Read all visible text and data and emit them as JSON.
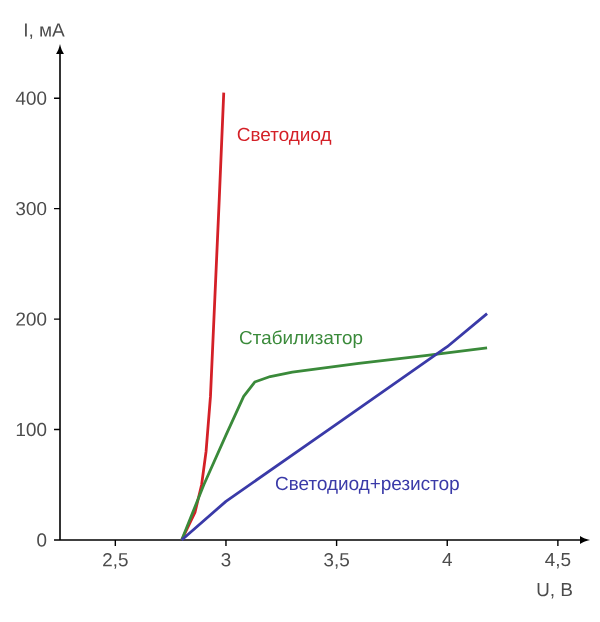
{
  "chart_data": {
    "type": "line",
    "xlabel": "U, В",
    "ylabel": "I, мА",
    "xlim": [
      2.25,
      4.6
    ],
    "ylim": [
      0,
      440
    ],
    "xticks": [
      {
        "value": 2.5,
        "label": "2,5"
      },
      3,
      {
        "value": 3.5,
        "label": "3,5"
      },
      4,
      {
        "value": 4.5,
        "label": "4,5"
      }
    ],
    "yticks": [
      0,
      100,
      200,
      300,
      400
    ],
    "grid": false,
    "legend": false,
    "marker": "none",
    "line_style": "solid",
    "series": [
      {
        "name": "Светодиод",
        "color": "#d42027",
        "x": [
          2.8,
          2.86,
          2.89,
          2.91,
          2.93,
          2.95,
          2.97,
          2.99
        ],
        "values": [
          0,
          25,
          50,
          80,
          130,
          220,
          310,
          405
        ]
      },
      {
        "name": "Стабилизатор",
        "color": "#3a8a3a",
        "x": [
          2.8,
          2.9,
          3.0,
          3.08,
          3.13,
          3.2,
          3.3,
          3.6,
          3.9,
          4.18
        ],
        "values": [
          0,
          50,
          95,
          130,
          143,
          148,
          152,
          160,
          167,
          174
        ]
      },
      {
        "name": "Светодиод+резистор",
        "color": "#3a3aa8",
        "x": [
          2.8,
          3.0,
          3.5,
          4.0,
          4.18
        ],
        "values": [
          0,
          35,
          105,
          175,
          205
        ]
      }
    ]
  }
}
